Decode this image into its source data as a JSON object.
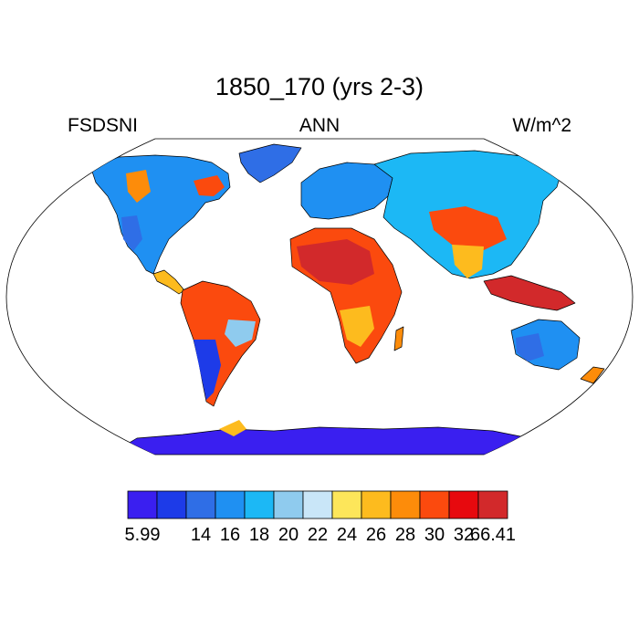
{
  "title": "1850_170 (yrs 2-3)",
  "left_string": "FSDSNI",
  "center_string": "ANN",
  "right_string": "W/m^2",
  "colorbar": {
    "colors": [
      "#3a1ff0",
      "#1d3be8",
      "#2f6ee6",
      "#1f90f2",
      "#1cb8f5",
      "#8fcbee",
      "#c9e6f8",
      "#fde65a",
      "#fdbb1e",
      "#fd8c0a",
      "#fb4a0e",
      "#e7090e",
      "#d2292b"
    ],
    "labels": [
      "5.99",
      "",
      "14",
      "16",
      "18",
      "20",
      "22",
      "24",
      "26",
      "28",
      "30",
      "32",
      "66.41"
    ]
  },
  "map": {
    "projection": "Robinson",
    "ocean_color": "#ffffff",
    "coastline_color": "#000000"
  }
}
